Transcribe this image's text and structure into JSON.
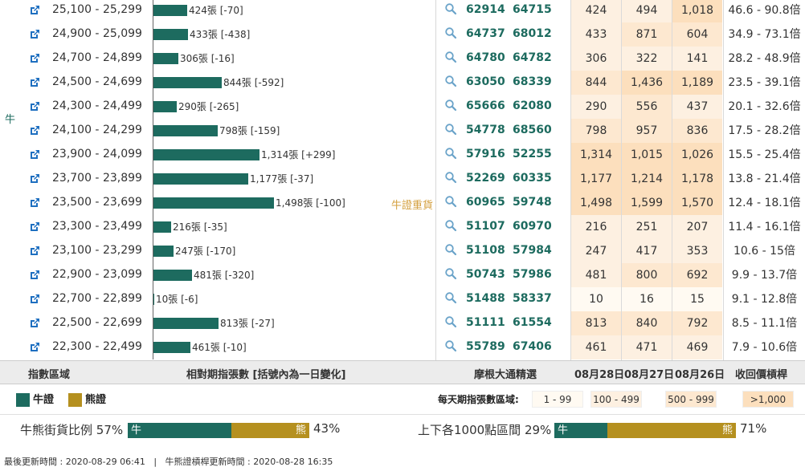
{
  "side_label": "牛",
  "tag_label": "牛證重貨",
  "rows": [
    {
      "range": "25,100 - 25,299",
      "count": 424,
      "bar_label": "424張 [-70]",
      "code1": "62914",
      "code2": "64715",
      "d1": "424",
      "d2": "494",
      "d3": "1,018",
      "lev": "46.6 - 90.8倍"
    },
    {
      "range": "24,900 - 25,099",
      "count": 433,
      "bar_label": "433張 [-438]",
      "code1": "64737",
      "code2": "68012",
      "d1": "433",
      "d2": "871",
      "d3": "604",
      "lev": "34.9 - 73.1倍"
    },
    {
      "range": "24,700 - 24,899",
      "count": 306,
      "bar_label": "306張 [-16]",
      "code1": "64780",
      "code2": "64782",
      "d1": "306",
      "d2": "322",
      "d3": "141",
      "lev": "28.2 - 48.9倍"
    },
    {
      "range": "24,500 - 24,699",
      "count": 844,
      "bar_label": "844張 [-592]",
      "code1": "63050",
      "code2": "68339",
      "d1": "844",
      "d2": "1,436",
      "d3": "1,189",
      "lev": "23.5 - 39.1倍"
    },
    {
      "range": "24,300 - 24,499",
      "count": 290,
      "bar_label": "290張 [-265]",
      "code1": "65666",
      "code2": "62080",
      "d1": "290",
      "d2": "556",
      "d3": "437",
      "lev": "20.1 - 32.6倍"
    },
    {
      "range": "24,100 - 24,299",
      "count": 798,
      "bar_label": "798張 [-159]",
      "code1": "54778",
      "code2": "68560",
      "d1": "798",
      "d2": "957",
      "d3": "836",
      "lev": "17.5 - 28.2倍"
    },
    {
      "range": "23,900 - 24,099",
      "count": 1314,
      "bar_label": "1,314張 [+299]",
      "code1": "57916",
      "code2": "52255",
      "d1": "1,314",
      "d2": "1,015",
      "d3": "1,026",
      "lev": "15.5 - 25.4倍"
    },
    {
      "range": "23,700 - 23,899",
      "count": 1177,
      "bar_label": "1,177張 [-37]",
      "code1": "52269",
      "code2": "60335",
      "d1": "1,177",
      "d2": "1,214",
      "d3": "1,178",
      "lev": "13.8 - 21.4倍"
    },
    {
      "range": "23,500 - 23,699",
      "count": 1498,
      "bar_label": "1,498張 [-100]",
      "code1": "60965",
      "code2": "59748",
      "d1": "1,498",
      "d2": "1,599",
      "d3": "1,570",
      "lev": "12.4 - 18.1倍"
    },
    {
      "range": "23,300 - 23,499",
      "count": 216,
      "bar_label": "216張 [-35]",
      "code1": "51107",
      "code2": "60970",
      "d1": "216",
      "d2": "251",
      "d3": "207",
      "lev": "11.4 - 16.1倍"
    },
    {
      "range": "23,100 - 23,299",
      "count": 247,
      "bar_label": "247張 [-170]",
      "code1": "51108",
      "code2": "57984",
      "d1": "247",
      "d2": "417",
      "d3": "353",
      "lev": "10.6 - 15倍"
    },
    {
      "range": "22,900 - 23,099",
      "count": 481,
      "bar_label": "481張 [-320]",
      "code1": "50743",
      "code2": "57986",
      "d1": "481",
      "d2": "800",
      "d3": "692",
      "lev": "9.9 - 13.7倍"
    },
    {
      "range": "22,700 - 22,899",
      "count": 10,
      "bar_label": "10張 [-6]",
      "code1": "51488",
      "code2": "58337",
      "d1": "10",
      "d2": "16",
      "d3": "15",
      "lev": "9.1 - 12.8倍"
    },
    {
      "range": "22,500 - 22,699",
      "count": 813,
      "bar_label": "813張 [-27]",
      "code1": "51111",
      "code2": "61554",
      "d1": "813",
      "d2": "840",
      "d3": "792",
      "lev": "8.5 - 11.1倍"
    },
    {
      "range": "22,300 - 22,499",
      "count": 461,
      "bar_label": "461張 [-10]",
      "code1": "55789",
      "code2": "67406",
      "d1": "461",
      "d2": "471",
      "d3": "469",
      "lev": "7.9 - 10.6倍"
    }
  ],
  "header": {
    "index_range": "指數區域",
    "count": "相對期指張數 [括號內為一日變化]",
    "broker": "摩根大通精選",
    "date1": "08月28日",
    "date2": "08月27日",
    "date3": "08月26日",
    "leverage": "收回價槓桿"
  },
  "legend": {
    "bull": "牛證",
    "bear": "熊證",
    "tiers_label": "每天期指張數區域:",
    "tiers": [
      "1 - 99",
      "100 - 499",
      "500 - 999",
      ">1,000"
    ]
  },
  "colors": {
    "bull": "#1d6b5f",
    "bear": "#b5901f",
    "tier1": "#fffaf2",
    "tier2": "#fdf0e1",
    "tier3": "#fde8d0",
    "tier4": "#fcdfbd"
  },
  "ratio1": {
    "label": "牛熊街貨比例",
    "bull_pct": 57,
    "bull_pct_text": "57%",
    "bull_text": "牛",
    "bear_text": "熊",
    "bear_pct_text": "43%"
  },
  "ratio2": {
    "label": "上下各1000點區間",
    "bull_pct": 29,
    "bull_pct_text": "29%",
    "bull_text": "牛",
    "bear_text": "熊",
    "bear_pct_text": "71%"
  },
  "footer": {
    "update": "最後更新時間 : 2020-08-29 06:41",
    "sep": "|",
    "lev_update": "牛熊證槓桿更新時間 : 2020-08-28 16:35"
  }
}
